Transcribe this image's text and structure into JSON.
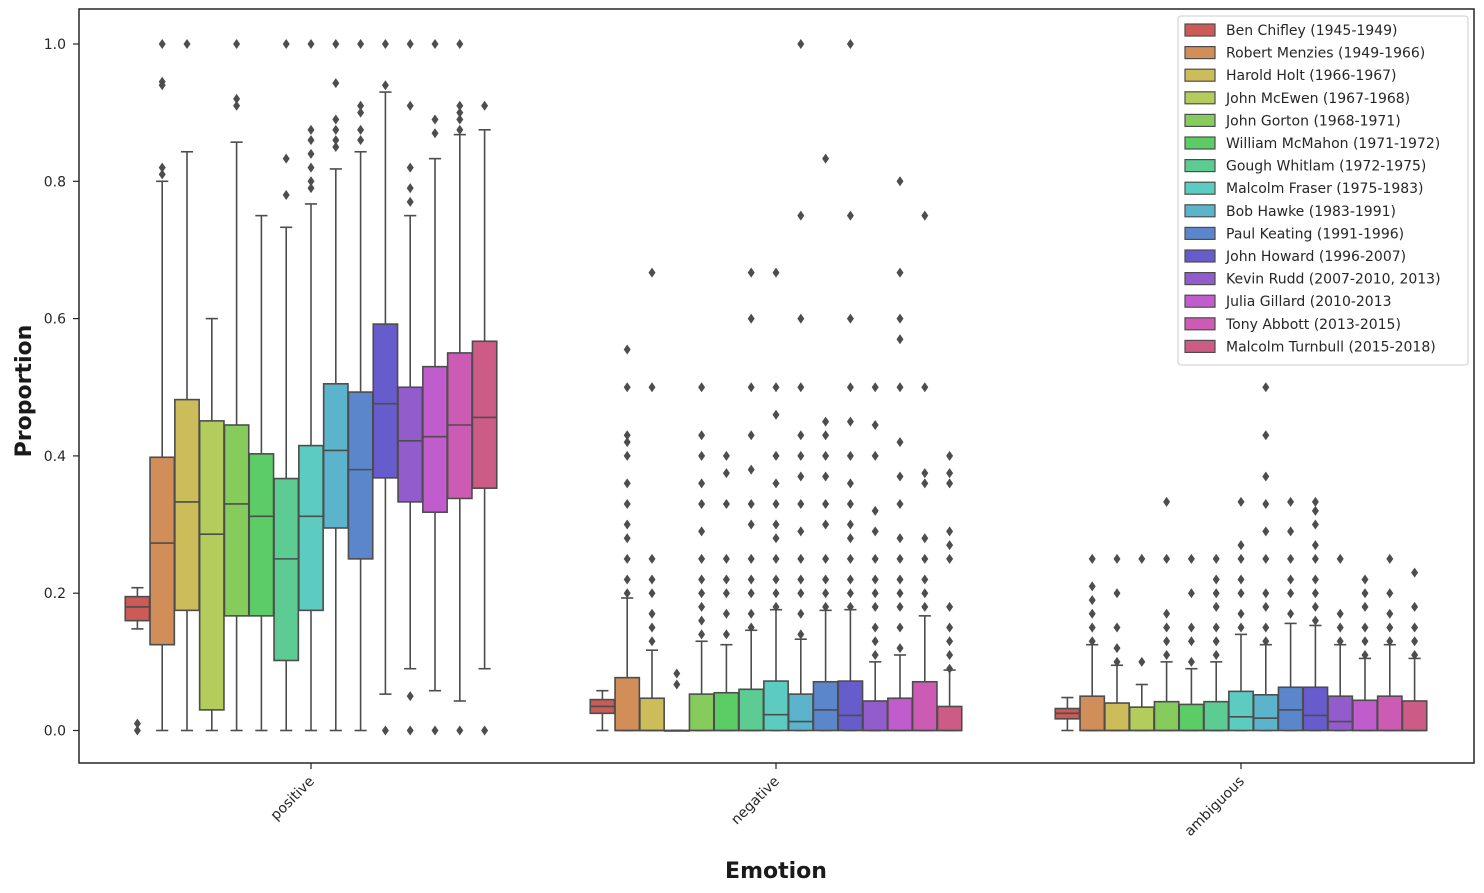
{
  "chart_data": {
    "type": "box",
    "xlabel": "Emotion",
    "ylabel": "Proportion",
    "categories": [
      "positive",
      "negative",
      "ambiguous"
    ],
    "ylim": [
      -0.05,
      1.05
    ],
    "yticks": [
      "0.0",
      "0.2",
      "0.4",
      "0.6",
      "0.8",
      "1.0"
    ],
    "legend_position": "top-right",
    "series": [
      {
        "name": "Ben Chifley (1945-1949)",
        "color": "#cc5a56",
        "boxes": [
          {
            "q1": 0.16,
            "median": 0.18,
            "q3": 0.195,
            "wlow": 0.148,
            "whigh": 0.208,
            "outliers": [
              0.0,
              0.01
            ]
          },
          {
            "q1": 0.025,
            "median": 0.035,
            "q3": 0.045,
            "wlow": 0.0,
            "whigh": 0.058,
            "outliers": []
          },
          {
            "q1": 0.017,
            "median": 0.025,
            "q3": 0.032,
            "wlow": 0.0,
            "whigh": 0.048,
            "outliers": []
          }
        ]
      },
      {
        "name": "Robert Menzies (1949-1966)",
        "color": "#d18e58",
        "boxes": [
          {
            "q1": 0.125,
            "median": 0.273,
            "q3": 0.398,
            "wlow": 0.0,
            "whigh": 0.8,
            "outliers": [
              0.81,
              0.82,
              0.94,
              0.945,
              1.0
            ]
          },
          {
            "q1": 0.0,
            "median": 0.0,
            "q3": 0.077,
            "wlow": 0.0,
            "whigh": 0.193,
            "outliers": [
              0.2,
              0.22,
              0.25,
              0.28,
              0.3,
              0.33,
              0.36,
              0.4,
              0.42,
              0.43,
              0.5,
              0.555
            ]
          },
          {
            "q1": 0.0,
            "median": 0.0,
            "q3": 0.05,
            "wlow": 0.0,
            "whigh": 0.125,
            "outliers": [
              0.13,
              0.15,
              0.17,
              0.19,
              0.21,
              0.25
            ]
          }
        ]
      },
      {
        "name": "Harold Holt (1966-1967)",
        "color": "#cdbc5a",
        "boxes": [
          {
            "q1": 0.175,
            "median": 0.333,
            "q3": 0.482,
            "wlow": 0.0,
            "whigh": 0.843,
            "outliers": [
              1.0
            ]
          },
          {
            "q1": 0.0,
            "median": 0.0,
            "q3": 0.047,
            "wlow": 0.0,
            "whigh": 0.117,
            "outliers": [
              0.13,
              0.15,
              0.17,
              0.2,
              0.22,
              0.25,
              0.5,
              0.667
            ]
          },
          {
            "q1": 0.0,
            "median": 0.0,
            "q3": 0.04,
            "wlow": 0.0,
            "whigh": 0.095,
            "outliers": [
              0.1,
              0.12,
              0.15,
              0.2,
              0.25
            ]
          }
        ]
      },
      {
        "name": "John McEwen (1967-1968)",
        "color": "#b3cc5c",
        "boxes": [
          {
            "q1": 0.03,
            "median": 0.286,
            "q3": 0.451,
            "wlow": 0.0,
            "whigh": 0.6,
            "outliers": []
          },
          {
            "q1": 0.0,
            "median": 0.0,
            "q3": 0.0,
            "wlow": 0.0,
            "whigh": 0.0,
            "outliers": [
              0.067,
              0.083
            ]
          },
          {
            "q1": 0.0,
            "median": 0.0,
            "q3": 0.034,
            "wlow": 0.0,
            "whigh": 0.067,
            "outliers": [
              0.1,
              0.25
            ]
          }
        ]
      },
      {
        "name": "John Gorton (1968-1971)",
        "color": "#86cc5c",
        "boxes": [
          {
            "q1": 0.167,
            "median": 0.33,
            "q3": 0.445,
            "wlow": 0.0,
            "whigh": 0.857,
            "outliers": [
              0.91,
              0.92,
              1.0
            ]
          },
          {
            "q1": 0.0,
            "median": 0.0,
            "q3": 0.053,
            "wlow": 0.0,
            "whigh": 0.13,
            "outliers": [
              0.14,
              0.16,
              0.18,
              0.2,
              0.22,
              0.25,
              0.29,
              0.33,
              0.36,
              0.4,
              0.43,
              0.5
            ]
          },
          {
            "q1": 0.0,
            "median": 0.0,
            "q3": 0.042,
            "wlow": 0.0,
            "whigh": 0.1,
            "outliers": [
              0.11,
              0.13,
              0.15,
              0.17,
              0.25,
              0.333
            ]
          }
        ]
      },
      {
        "name": "William McMahon (1971-1972)",
        "color": "#5ccc67",
        "boxes": [
          {
            "q1": 0.167,
            "median": 0.312,
            "q3": 0.403,
            "wlow": 0.0,
            "whigh": 0.75,
            "outliers": []
          },
          {
            "q1": 0.0,
            "median": 0.0,
            "q3": 0.055,
            "wlow": 0.0,
            "whigh": 0.125,
            "outliers": [
              0.14,
              0.17,
              0.2,
              0.22,
              0.25,
              0.33,
              0.375,
              0.4
            ]
          },
          {
            "q1": 0.0,
            "median": 0.0,
            "q3": 0.038,
            "wlow": 0.0,
            "whigh": 0.09,
            "outliers": [
              0.1,
              0.13,
              0.15,
              0.2,
              0.25
            ]
          }
        ]
      },
      {
        "name": "Gough Whitlam (1972-1975)",
        "color": "#5ccc93",
        "boxes": [
          {
            "q1": 0.102,
            "median": 0.25,
            "q3": 0.367,
            "wlow": 0.0,
            "whigh": 0.733,
            "outliers": [
              0.78,
              0.833,
              1.0
            ]
          },
          {
            "q1": 0.0,
            "median": 0.0,
            "q3": 0.06,
            "wlow": 0.0,
            "whigh": 0.146,
            "outliers": [
              0.15,
              0.17,
              0.2,
              0.22,
              0.25,
              0.3,
              0.33,
              0.38,
              0.43,
              0.5,
              0.6,
              0.667
            ]
          },
          {
            "q1": 0.0,
            "median": 0.0,
            "q3": 0.042,
            "wlow": 0.0,
            "whigh": 0.1,
            "outliers": [
              0.11,
              0.13,
              0.15,
              0.18,
              0.2,
              0.22,
              0.25
            ]
          }
        ]
      },
      {
        "name": "Malcolm Fraser (1975-1983)",
        "color": "#5cccc0",
        "boxes": [
          {
            "q1": 0.175,
            "median": 0.312,
            "q3": 0.415,
            "wlow": 0.0,
            "whigh": 0.767,
            "outliers": [
              0.79,
              0.8,
              0.82,
              0.84,
              0.86,
              0.875,
              1.0
            ]
          },
          {
            "q1": 0.0,
            "median": 0.023,
            "q3": 0.072,
            "wlow": 0.0,
            "whigh": 0.176,
            "outliers": [
              0.18,
              0.2,
              0.22,
              0.25,
              0.28,
              0.3,
              0.33,
              0.36,
              0.4,
              0.46,
              0.5,
              0.667
            ]
          },
          {
            "q1": 0.0,
            "median": 0.02,
            "q3": 0.057,
            "wlow": 0.0,
            "whigh": 0.14,
            "outliers": [
              0.15,
              0.17,
              0.2,
              0.22,
              0.25,
              0.27,
              0.333
            ]
          }
        ]
      },
      {
        "name": "Bob Hawke (1983-1991)",
        "color": "#5cb3cc",
        "boxes": [
          {
            "q1": 0.295,
            "median": 0.408,
            "q3": 0.505,
            "wlow": 0.0,
            "whigh": 0.818,
            "outliers": [
              0.85,
              0.86,
              0.875,
              0.89,
              0.943,
              1.0
            ]
          },
          {
            "q1": 0.0,
            "median": 0.013,
            "q3": 0.053,
            "wlow": 0.0,
            "whigh": 0.133,
            "outliers": [
              0.14,
              0.17,
              0.2,
              0.22,
              0.25,
              0.29,
              0.33,
              0.37,
              0.4,
              0.43,
              0.5,
              0.6,
              0.75,
              1.0
            ]
          },
          {
            "q1": 0.0,
            "median": 0.018,
            "q3": 0.052,
            "wlow": 0.0,
            "whigh": 0.125,
            "outliers": [
              0.13,
              0.15,
              0.18,
              0.2,
              0.25,
              0.29,
              0.33,
              0.37,
              0.43,
              0.5
            ]
          }
        ]
      },
      {
        "name": "Paul Keating (1991-1996)",
        "color": "#5c86cc",
        "boxes": [
          {
            "q1": 0.25,
            "median": 0.38,
            "q3": 0.493,
            "wlow": 0.0,
            "whigh": 0.843,
            "outliers": [
              0.86,
              0.875,
              0.9,
              0.91,
              1.0
            ]
          },
          {
            "q1": 0.0,
            "median": 0.03,
            "q3": 0.071,
            "wlow": 0.0,
            "whigh": 0.175,
            "outliers": [
              0.18,
              0.2,
              0.22,
              0.25,
              0.3,
              0.33,
              0.37,
              0.4,
              0.43,
              0.45,
              0.833
            ]
          },
          {
            "q1": 0.0,
            "median": 0.03,
            "q3": 0.063,
            "wlow": 0.0,
            "whigh": 0.156,
            "outliers": [
              0.17,
              0.2,
              0.22,
              0.25,
              0.29,
              0.333
            ]
          }
        ]
      },
      {
        "name": "John Howard (1996-2007)",
        "color": "#675ccc",
        "boxes": [
          {
            "q1": 0.368,
            "median": 0.476,
            "q3": 0.592,
            "wlow": 0.053,
            "whigh": 0.93,
            "outliers": [
              0.0,
              0.94,
              1.0
            ]
          },
          {
            "q1": 0.0,
            "median": 0.022,
            "q3": 0.072,
            "wlow": 0.0,
            "whigh": 0.176,
            "outliers": [
              0.18,
              0.2,
              0.22,
              0.25,
              0.28,
              0.3,
              0.33,
              0.36,
              0.4,
              0.45,
              0.5,
              0.6,
              0.75,
              1.0
            ]
          },
          {
            "q1": 0.0,
            "median": 0.022,
            "q3": 0.063,
            "wlow": 0.0,
            "whigh": 0.153,
            "outliers": [
              0.16,
              0.18,
              0.2,
              0.22,
              0.25,
              0.27,
              0.3,
              0.32,
              0.333
            ]
          }
        ]
      },
      {
        "name": "Kevin Rudd (2007-2010, 2013)",
        "color": "#935ccc",
        "boxes": [
          {
            "q1": 0.333,
            "median": 0.422,
            "q3": 0.5,
            "wlow": 0.09,
            "whigh": 0.75,
            "outliers": [
              0.0,
              0.05,
              0.77,
              0.79,
              0.82,
              0.91,
              1.0
            ]
          },
          {
            "q1": 0.0,
            "median": 0.0,
            "q3": 0.043,
            "wlow": 0.0,
            "whigh": 0.1,
            "outliers": [
              0.11,
              0.13,
              0.15,
              0.18,
              0.2,
              0.22,
              0.25,
              0.29,
              0.32,
              0.4,
              0.445,
              0.5
            ]
          },
          {
            "q1": 0.0,
            "median": 0.013,
            "q3": 0.05,
            "wlow": 0.0,
            "whigh": 0.125,
            "outliers": [
              0.13,
              0.15,
              0.17,
              0.25
            ]
          }
        ]
      },
      {
        "name": "Julia Gillard (2010-2013",
        "color": "#c05ccc",
        "boxes": [
          {
            "q1": 0.318,
            "median": 0.428,
            "q3": 0.53,
            "wlow": 0.058,
            "whigh": 0.833,
            "outliers": [
              0.0,
              0.87,
              0.89,
              1.0
            ]
          },
          {
            "q1": 0.0,
            "median": 0.0,
            "q3": 0.047,
            "wlow": 0.0,
            "whigh": 0.11,
            "outliers": [
              0.12,
              0.15,
              0.18,
              0.2,
              0.22,
              0.25,
              0.28,
              0.33,
              0.37,
              0.42,
              0.5,
              0.57,
              0.6,
              0.667,
              0.8
            ]
          },
          {
            "q1": 0.0,
            "median": 0.0,
            "q3": 0.044,
            "wlow": 0.0,
            "whigh": 0.105,
            "outliers": [
              0.11,
              0.13,
              0.15,
              0.18,
              0.2,
              0.22
            ]
          }
        ]
      },
      {
        "name": "Tony Abbott (2013-2015)",
        "color": "#cc5cb3",
        "boxes": [
          {
            "q1": 0.338,
            "median": 0.445,
            "q3": 0.55,
            "wlow": 0.043,
            "whigh": 0.868,
            "outliers": [
              0.0,
              0.875,
              0.89,
              0.9,
              0.91,
              1.0
            ]
          },
          {
            "q1": 0.0,
            "median": 0.0,
            "q3": 0.071,
            "wlow": 0.0,
            "whigh": 0.167,
            "outliers": [
              0.18,
              0.2,
              0.22,
              0.25,
              0.28,
              0.36,
              0.375,
              0.5,
              0.75
            ]
          },
          {
            "q1": 0.0,
            "median": 0.0,
            "q3": 0.05,
            "wlow": 0.0,
            "whigh": 0.125,
            "outliers": [
              0.13,
              0.15,
              0.17,
              0.2,
              0.25
            ]
          }
        ]
      },
      {
        "name": "Malcolm Turnbull (2015-2018)",
        "color": "#cc5c86",
        "boxes": [
          {
            "q1": 0.353,
            "median": 0.456,
            "q3": 0.567,
            "wlow": 0.09,
            "whigh": 0.875,
            "outliers": [
              0.0,
              0.91
            ]
          },
          {
            "q1": 0.0,
            "median": 0.0,
            "q3": 0.035,
            "wlow": 0.0,
            "whigh": 0.088,
            "outliers": [
              0.09,
              0.11,
              0.13,
              0.15,
              0.18,
              0.25,
              0.27,
              0.29,
              0.36,
              0.375,
              0.4
            ]
          },
          {
            "q1": 0.0,
            "median": 0.0,
            "q3": 0.043,
            "wlow": 0.0,
            "whigh": 0.105,
            "outliers": [
              0.11,
              0.13,
              0.15,
              0.18,
              0.23
            ]
          }
        ]
      }
    ]
  }
}
